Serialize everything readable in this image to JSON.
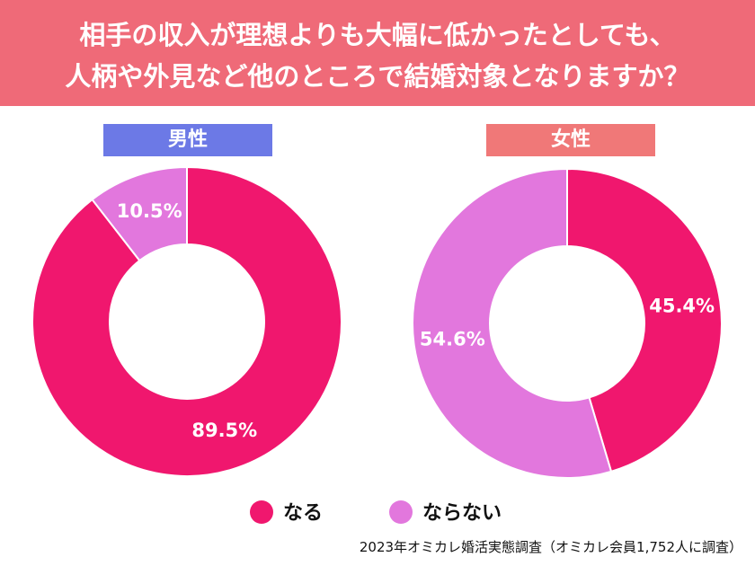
{
  "title": {
    "line1": "相手の収入が理想よりも大幅に低かったとしても、",
    "line2": "人柄や外見など他のところで結婚対象となりますか？"
  },
  "colors": {
    "title_bg": "#ef6a78",
    "male_label_bg": "#6c79e6",
    "female_label_bg": "#f07878",
    "naru": "#f0176e",
    "naranai": "#e277dd"
  },
  "legend": [
    {
      "label": "なる",
      "color": "#f0176e"
    },
    {
      "label": "ならない",
      "color": "#e277dd"
    }
  ],
  "source": "2023年オミカレ婚活実態調査（オミカレ会員1,752人に調査）",
  "chart_data": [
    {
      "type": "pie",
      "title": "男性",
      "slices": [
        {
          "name": "なる",
          "value": 89.5,
          "label": "89.5%",
          "color": "#f0176e"
        },
        {
          "name": "ならない",
          "value": 10.5,
          "label": "10.5%",
          "color": "#e277dd"
        }
      ]
    },
    {
      "type": "pie",
      "title": "女性",
      "slices": [
        {
          "name": "なる",
          "value": 45.4,
          "label": "45.4%",
          "color": "#f0176e"
        },
        {
          "name": "ならない",
          "value": 54.6,
          "label": "54.6%",
          "color": "#e277dd"
        }
      ]
    }
  ]
}
